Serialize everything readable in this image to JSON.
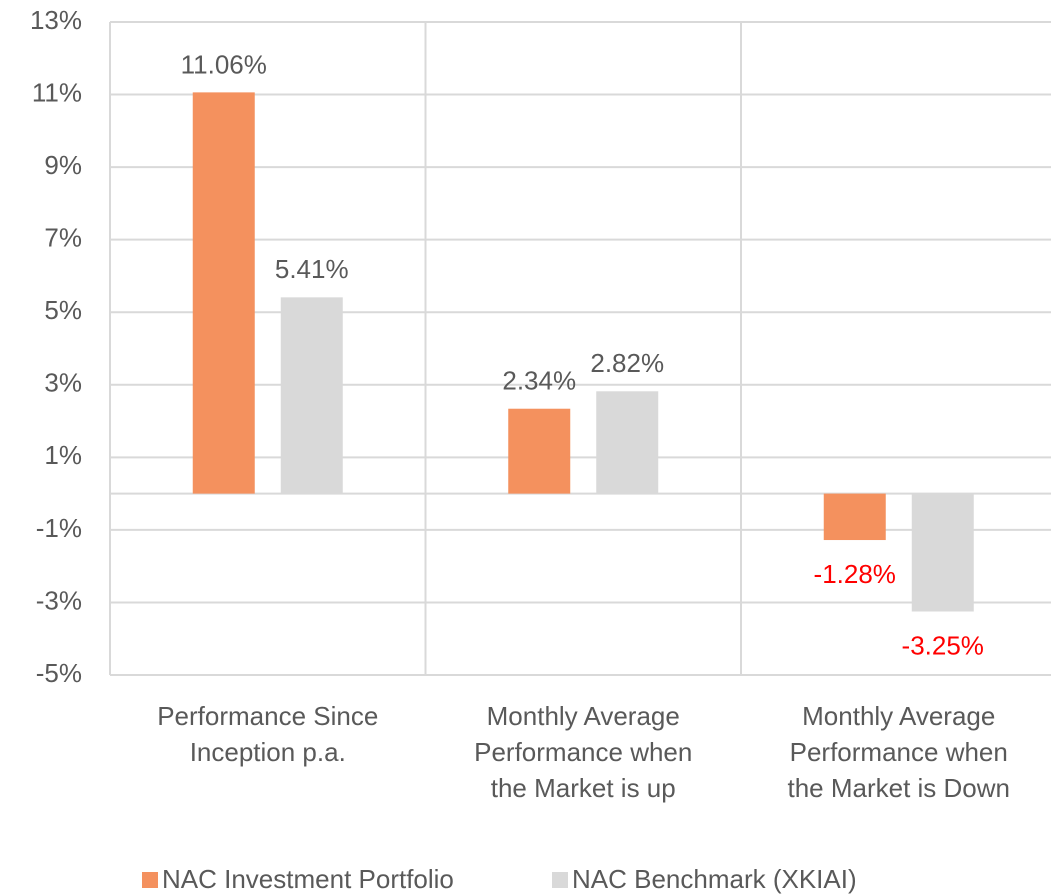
{
  "chart_data": {
    "type": "bar",
    "categories": [
      "Performance Since\nInception p.a.",
      "Monthly Average\nPerformance when\nthe Market is up",
      "Monthly Average\nPerformance when\nthe Market is Down"
    ],
    "series": [
      {
        "name": "NAC Investment Portfolio",
        "color": "#f4915e",
        "values": [
          11.06,
          2.34,
          -1.28
        ],
        "value_labels": [
          "11.06%",
          "2.34%",
          "-1.28%"
        ]
      },
      {
        "name": "NAC Benchmark (XKIAI)",
        "color": "#d9d9d9",
        "values": [
          5.41,
          2.82,
          -3.25
        ],
        "value_labels": [
          "5.41%",
          "2.82%",
          "-3.25%"
        ]
      }
    ],
    "ylim": [
      -5,
      13
    ],
    "yticks": [
      {
        "value": -5,
        "label": "-5%"
      },
      {
        "value": -3,
        "label": "-3%"
      },
      {
        "value": -1,
        "label": "-1%"
      },
      {
        "value": 1,
        "label": "1%"
      },
      {
        "value": 3,
        "label": "3%"
      },
      {
        "value": 5,
        "label": "5%"
      },
      {
        "value": 7,
        "label": "7%"
      },
      {
        "value": 9,
        "label": "9%"
      },
      {
        "value": 11,
        "label": "11%"
      },
      {
        "value": 13,
        "label": "13%"
      }
    ],
    "grid": true,
    "negative_label_color": "#ff0000",
    "legend": "bottom"
  }
}
